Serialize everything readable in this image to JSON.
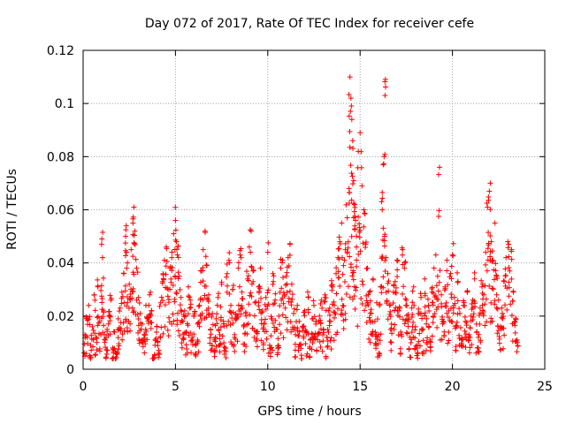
{
  "chart_data": {
    "type": "scatter",
    "title": "Day 072 of 2017, Rate Of TEC Index for receiver cefe",
    "xlabel": "GPS time / hours",
    "ylabel": "ROTI / TECUs",
    "xlim": [
      0,
      25
    ],
    "ylim": [
      0,
      0.12
    ],
    "xticks": [
      0,
      5,
      10,
      15,
      20,
      25
    ],
    "xtick_labels": [
      "0",
      "5",
      "10",
      "15",
      "20",
      "25"
    ],
    "yticks": [
      0,
      0.02,
      0.04,
      0.06,
      0.08,
      0.1,
      0.12
    ],
    "ytick_labels": [
      "0",
      "0.02",
      "0.04",
      "0.06",
      "0.08",
      "0.1",
      "0.12"
    ],
    "grid": true,
    "marker": "plus",
    "color": "#ff0000",
    "series": [
      {
        "name": "ROTI",
        "points": [
          [
            0.1,
            0.013
          ],
          [
            0.2,
            0.019
          ],
          [
            0.3,
            0.024
          ],
          [
            0.4,
            0.009
          ],
          [
            0.5,
            0.016
          ],
          [
            0.6,
            0.028
          ],
          [
            0.7,
            0.012
          ],
          [
            0.8,
            0.031
          ],
          [
            0.9,
            0.018
          ],
          [
            1.0,
            0.047
          ],
          [
            1.05,
            0.042
          ],
          [
            1.1,
            0.022
          ],
          [
            1.2,
            0.011
          ],
          [
            1.3,
            0.015
          ],
          [
            1.4,
            0.02
          ],
          [
            1.5,
            0.026
          ],
          [
            1.6,
            0.008
          ],
          [
            1.7,
            0.014
          ],
          [
            1.8,
            0.006
          ],
          [
            1.9,
            0.019
          ],
          [
            2.0,
            0.023
          ],
          [
            2.1,
            0.029
          ],
          [
            2.2,
            0.036
          ],
          [
            2.3,
            0.05
          ],
          [
            2.35,
            0.044
          ],
          [
            2.4,
            0.04
          ],
          [
            2.5,
            0.032
          ],
          [
            2.6,
            0.045
          ],
          [
            2.7,
            0.055
          ],
          [
            2.75,
            0.061
          ],
          [
            2.8,
            0.052
          ],
          [
            2.9,
            0.038
          ],
          [
            3.0,
            0.027
          ],
          [
            3.1,
            0.021
          ],
          [
            3.2,
            0.017
          ],
          [
            3.3,
            0.013
          ],
          [
            3.4,
            0.024
          ],
          [
            3.5,
            0.019
          ],
          [
            3.6,
            0.028
          ],
          [
            3.7,
            0.022
          ],
          [
            3.8,
            0.004
          ],
          [
            3.9,
            0.011
          ],
          [
            4.0,
            0.016
          ],
          [
            4.1,
            0.007
          ],
          [
            4.2,
            0.025
          ],
          [
            4.3,
            0.033
          ],
          [
            4.4,
            0.041
          ],
          [
            4.5,
            0.046
          ],
          [
            4.6,
            0.03
          ],
          [
            4.7,
            0.038
          ],
          [
            4.8,
            0.042
          ],
          [
            4.9,
            0.051
          ],
          [
            5.0,
            0.056
          ],
          [
            5.05,
            0.048
          ],
          [
            5.1,
            0.043
          ],
          [
            5.2,
            0.035
          ],
          [
            5.3,
            0.027
          ],
          [
            5.4,
            0.018
          ],
          [
            5.5,
            0.022
          ],
          [
            5.6,
            0.014
          ],
          [
            5.7,
            0.031
          ],
          [
            5.8,
            0.026
          ],
          [
            5.9,
            0.012
          ],
          [
            6.0,
            0.02
          ],
          [
            6.1,
            0.009
          ],
          [
            6.2,
            0.017
          ],
          [
            6.3,
            0.024
          ],
          [
            6.4,
            0.037
          ],
          [
            6.5,
            0.045
          ],
          [
            6.6,
            0.052
          ],
          [
            6.7,
            0.039
          ],
          [
            6.8,
            0.028
          ],
          [
            6.9,
            0.015
          ],
          [
            7.0,
            0.021
          ],
          [
            7.1,
            0.011
          ],
          [
            7.2,
            0.019
          ],
          [
            7.3,
            0.027
          ],
          [
            7.4,
            0.013
          ],
          [
            7.5,
            0.032
          ],
          [
            7.6,
            0.018
          ],
          [
            7.7,
            0.008
          ],
          [
            7.8,
            0.036
          ],
          [
            7.9,
            0.041
          ],
          [
            8.0,
            0.024
          ],
          [
            8.1,
            0.03
          ],
          [
            8.2,
            0.012
          ],
          [
            8.3,
            0.019
          ],
          [
            8.4,
            0.038
          ],
          [
            8.5,
            0.043
          ],
          [
            8.6,
            0.029
          ],
          [
            8.7,
            0.016
          ],
          [
            8.8,
            0.021
          ],
          [
            8.9,
            0.034
          ],
          [
            9.0,
            0.046
          ],
          [
            9.1,
            0.052
          ],
          [
            9.2,
            0.037
          ],
          [
            9.3,
            0.025
          ],
          [
            9.4,
            0.014
          ],
          [
            9.5,
            0.031
          ],
          [
            9.6,
            0.038
          ],
          [
            9.7,
            0.022
          ],
          [
            9.8,
            0.017
          ],
          [
            9.9,
            0.027
          ],
          [
            10.0,
            0.044
          ],
          [
            10.1,
            0.009
          ],
          [
            10.2,
            0.019
          ],
          [
            10.3,
            0.033
          ],
          [
            10.4,
            0.026
          ],
          [
            10.5,
            0.015
          ],
          [
            10.6,
            0.02
          ],
          [
            10.7,
            0.038
          ],
          [
            10.8,
            0.041
          ],
          [
            10.9,
            0.028
          ],
          [
            11.0,
            0.035
          ],
          [
            11.1,
            0.042
          ],
          [
            11.2,
            0.047
          ],
          [
            11.3,
            0.032
          ],
          [
            11.4,
            0.021
          ],
          [
            11.5,
            0.013
          ],
          [
            11.6,
            0.024
          ],
          [
            11.7,
            0.018
          ],
          [
            11.8,
            0.009
          ],
          [
            11.9,
            0.016
          ],
          [
            12.0,
            0.022
          ],
          [
            12.1,
            0.014
          ],
          [
            12.2,
            0.027
          ],
          [
            12.3,
            0.011
          ],
          [
            12.4,
            0.019
          ],
          [
            12.5,
            0.024
          ],
          [
            12.6,
            0.017
          ],
          [
            12.7,
            0.013
          ],
          [
            12.8,
            0.02
          ],
          [
            12.9,
            0.026
          ],
          [
            13.0,
            0.015
          ],
          [
            13.1,
            0.028
          ],
          [
            13.2,
            0.012
          ],
          [
            13.3,
            0.022
          ],
          [
            13.4,
            0.018
          ],
          [
            13.5,
            0.031
          ],
          [
            13.6,
            0.024
          ],
          [
            13.7,
            0.036
          ],
          [
            13.8,
            0.042
          ],
          [
            13.9,
            0.048
          ],
          [
            14.0,
            0.055
          ],
          [
            14.1,
            0.039
          ],
          [
            14.2,
            0.045
          ],
          [
            14.3,
            0.057
          ],
          [
            14.4,
            0.068
          ],
          [
            14.45,
            0.11
          ],
          [
            14.5,
            0.102
          ],
          [
            14.55,
            0.094
          ],
          [
            14.6,
            0.086
          ],
          [
            14.65,
            0.071
          ],
          [
            14.7,
            0.062
          ],
          [
            14.75,
            0.056
          ],
          [
            14.8,
            0.046
          ],
          [
            14.9,
            0.082
          ],
          [
            15.0,
            0.089
          ],
          [
            15.1,
            0.069
          ],
          [
            15.2,
            0.06
          ],
          [
            15.3,
            0.047
          ],
          [
            15.4,
            0.038
          ],
          [
            15.5,
            0.029
          ],
          [
            15.6,
            0.021
          ],
          [
            15.7,
            0.034
          ],
          [
            15.8,
            0.018
          ],
          [
            15.9,
            0.025
          ],
          [
            16.0,
            0.013
          ],
          [
            16.1,
            0.031
          ],
          [
            16.2,
            0.06
          ],
          [
            16.25,
            0.077
          ],
          [
            16.3,
            0.08
          ],
          [
            16.35,
            0.103
          ],
          [
            16.4,
            0.042
          ],
          [
            16.5,
            0.036
          ],
          [
            16.6,
            0.024
          ],
          [
            16.7,
            0.017
          ],
          [
            16.8,
            0.029
          ],
          [
            16.9,
            0.033
          ],
          [
            17.0,
            0.041
          ],
          [
            17.1,
            0.022
          ],
          [
            17.2,
            0.014
          ],
          [
            17.3,
            0.045
          ],
          [
            17.4,
            0.038
          ],
          [
            17.5,
            0.026
          ],
          [
            17.6,
            0.019
          ],
          [
            17.7,
            0.012
          ],
          [
            17.8,
            0.023
          ],
          [
            17.9,
            0.031
          ],
          [
            18.0,
            0.016
          ],
          [
            18.1,
            0.009
          ],
          [
            18.2,
            0.021
          ],
          [
            18.3,
            0.027
          ],
          [
            18.4,
            0.015
          ],
          [
            18.5,
            0.034
          ],
          [
            18.6,
            0.019
          ],
          [
            18.7,
            0.024
          ],
          [
            18.8,
            0.011
          ],
          [
            18.9,
            0.029
          ],
          [
            19.0,
            0.038
          ],
          [
            19.1,
            0.043
          ],
          [
            19.2,
            0.035
          ],
          [
            19.3,
            0.076
          ],
          [
            19.4,
            0.028
          ],
          [
            19.5,
            0.018
          ],
          [
            19.6,
            0.031
          ],
          [
            19.7,
            0.041
          ],
          [
            19.8,
            0.022
          ],
          [
            19.9,
            0.036
          ],
          [
            20.0,
            0.043
          ],
          [
            20.1,
            0.027
          ],
          [
            20.2,
            0.016
          ],
          [
            20.3,
            0.033
          ],
          [
            20.4,
            0.021
          ],
          [
            20.5,
            0.011
          ],
          [
            20.6,
            0.024
          ],
          [
            20.7,
            0.018
          ],
          [
            20.8,
            0.029
          ],
          [
            20.9,
            0.013
          ],
          [
            21.0,
            0.02
          ],
          [
            21.1,
            0.026
          ],
          [
            21.2,
            0.034
          ],
          [
            21.3,
            0.017
          ],
          [
            21.4,
            0.012
          ],
          [
            21.5,
            0.023
          ],
          [
            21.6,
            0.031
          ],
          [
            21.7,
            0.028
          ],
          [
            21.8,
            0.044
          ],
          [
            21.9,
            0.061
          ],
          [
            22.0,
            0.067
          ],
          [
            22.05,
            0.07
          ],
          [
            22.1,
            0.048
          ],
          [
            22.2,
            0.041
          ],
          [
            22.3,
            0.055
          ],
          [
            22.4,
            0.035
          ],
          [
            22.5,
            0.026
          ],
          [
            22.6,
            0.016
          ],
          [
            22.7,
            0.021
          ],
          [
            22.8,
            0.033
          ],
          [
            22.9,
            0.042
          ],
          [
            23.0,
            0.048
          ],
          [
            23.1,
            0.037
          ],
          [
            23.2,
            0.045
          ],
          [
            23.3,
            0.029
          ],
          [
            23.4,
            0.018
          ],
          [
            23.5,
            0.011
          ]
        ]
      }
    ]
  }
}
